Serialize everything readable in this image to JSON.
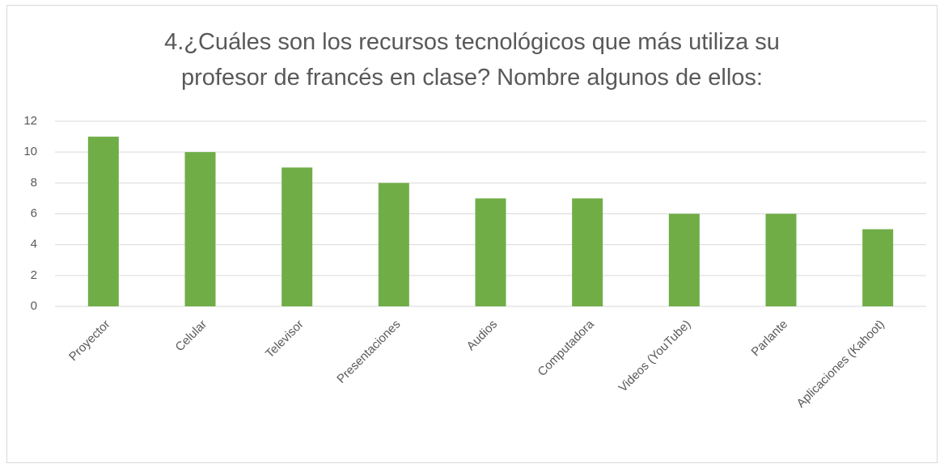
{
  "chart_data": {
    "type": "bar",
    "title": "4.¿Cuáles son los recursos tecnológicos que más utiliza su\nprofesor de francés en clase? Nombre algunos de ellos:",
    "categories": [
      "Proyector",
      "Celular",
      "Televisor",
      "Presentaciones",
      "Audios",
      "Computadora",
      "Videos (YouTube)",
      "Parlante",
      "Aplicaciones (Kahoot)"
    ],
    "values": [
      11,
      10,
      9,
      8,
      7,
      7,
      6,
      6,
      5
    ],
    "color": "#70ad47",
    "ylim": [
      0,
      12
    ],
    "yticks": [
      0,
      2,
      4,
      6,
      8,
      10,
      12
    ],
    "grid": true
  }
}
